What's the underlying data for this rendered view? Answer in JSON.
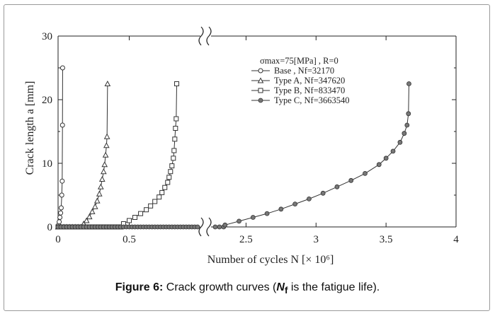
{
  "colors": {
    "axis": "#222222",
    "series": "#333333",
    "frame": "#9a9a9a",
    "marker_fill_typeC": "#777777"
  },
  "caption": {
    "prefix": "Figure 6:",
    "text_before": " Crack growth curves (",
    "symbol": "N",
    "subscript": "f",
    "text_after": " is the fatigue life)."
  },
  "chart_data": {
    "type": "line",
    "xlabel": "Number of cycles  N  [× 10⁶]",
    "ylabel": "Crack length  a  [mm]",
    "ylim": [
      0,
      30
    ],
    "x_segments": [
      {
        "range": [
          0,
          1
        ],
        "ticks": [
          0,
          0.5
        ],
        "tick_labels": [
          "0",
          "0.5"
        ]
      },
      {
        "range": [
          2.25,
          4
        ],
        "ticks": [
          2.5,
          3,
          3.5,
          4
        ],
        "tick_labels": [
          "2.5",
          "3",
          "3.5",
          "4"
        ]
      }
    ],
    "y_ticks": [
      0,
      10,
      20,
      30
    ],
    "axis_break": true,
    "grid": false,
    "legend": {
      "placement": "top-right",
      "condition": "σmax=75[MPa] , R=0",
      "entries": [
        {
          "label": "Base    , Nf=32170",
          "marker": "circle"
        },
        {
          "label": "Type A,  Nf=347620",
          "marker": "triangle"
        },
        {
          "label": "Type B,  Nf=833470",
          "marker": "square"
        },
        {
          "label": "Type C,  Nf=3663540",
          "marker": "filled-circle"
        }
      ]
    },
    "series": [
      {
        "name": "Base",
        "marker": "circle",
        "nf": 0.03217,
        "x": [
          0.003,
          0.008,
          0.013,
          0.018,
          0.022,
          0.026,
          0.029,
          0.031,
          0.032
        ],
        "y": [
          0.3,
          0.8,
          1.5,
          2.2,
          3.0,
          5.0,
          7.2,
          16.0,
          25.0
        ]
      },
      {
        "name": "Type A",
        "marker": "triangle",
        "nf": 0.34762,
        "x": [
          0.18,
          0.2,
          0.22,
          0.24,
          0.26,
          0.275,
          0.29,
          0.3,
          0.31,
          0.32,
          0.327,
          0.334,
          0.34,
          0.344,
          0.3476
        ],
        "y": [
          0.5,
          1.0,
          1.6,
          2.4,
          3.2,
          4.1,
          5.2,
          6.3,
          7.5,
          8.7,
          9.8,
          11.3,
          12.8,
          14.2,
          22.5
        ]
      },
      {
        "name": "Type B",
        "marker": "square",
        "nf": 0.83347,
        "x": [
          0.46,
          0.5,
          0.54,
          0.58,
          0.62,
          0.65,
          0.68,
          0.71,
          0.73,
          0.75,
          0.77,
          0.78,
          0.79,
          0.8,
          0.81,
          0.815,
          0.82,
          0.825,
          0.83,
          0.8335
        ],
        "y": [
          0.5,
          1.0,
          1.5,
          2.1,
          2.7,
          3.3,
          4.0,
          4.7,
          5.4,
          6.2,
          7.0,
          7.8,
          8.7,
          9.6,
          10.8,
          12.0,
          13.8,
          15.5,
          17.0,
          22.5
        ]
      },
      {
        "name": "Type C",
        "marker": "filled-circle",
        "nf": 3.66354,
        "x": [
          2.35,
          2.45,
          2.55,
          2.65,
          2.75,
          2.85,
          2.95,
          3.05,
          3.15,
          3.25,
          3.35,
          3.45,
          3.5,
          3.55,
          3.6,
          3.63,
          3.65,
          3.66,
          3.6635
        ],
        "y": [
          0.3,
          0.9,
          1.5,
          2.1,
          2.8,
          3.6,
          4.4,
          5.3,
          6.3,
          7.3,
          8.4,
          9.8,
          10.8,
          11.9,
          13.3,
          14.7,
          16.0,
          17.8,
          22.5
        ]
      }
    ]
  }
}
